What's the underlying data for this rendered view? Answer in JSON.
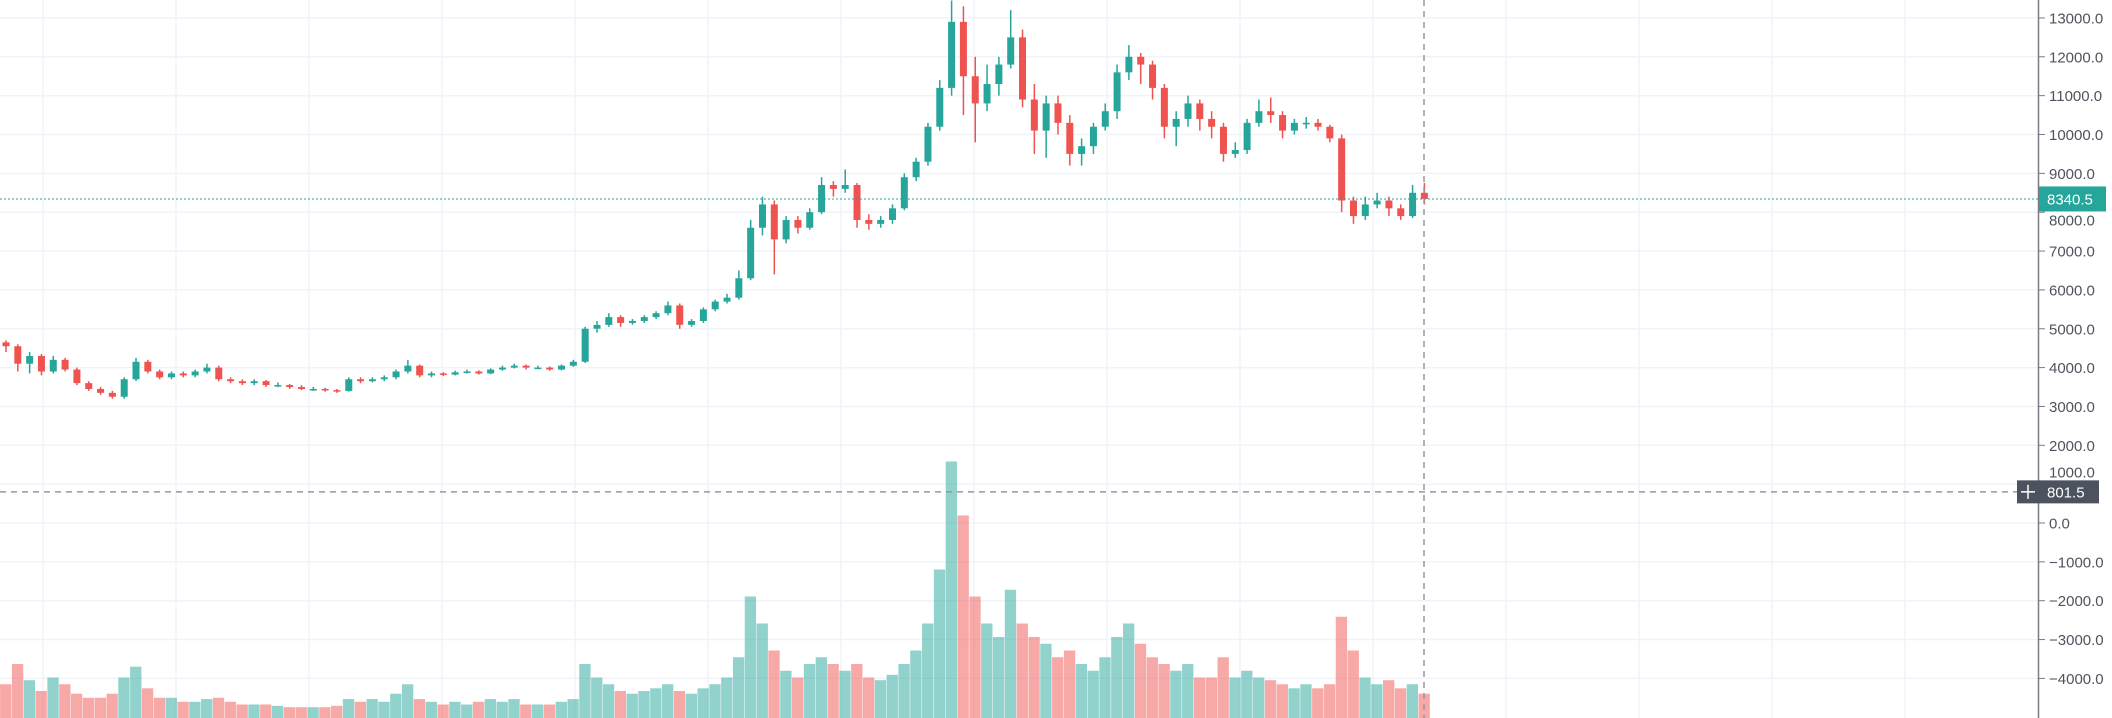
{
  "chart_data": {
    "type": "candlestick",
    "title": "",
    "xlabel": "",
    "ylabel": "",
    "ylim": [
      -5000,
      13500
    ],
    "y_ticks": [
      "13000.0",
      "12000.0",
      "11000.0",
      "10000.0",
      "9000.0",
      "8000.0",
      "7000.0",
      "6000.0",
      "5000.0",
      "4000.0",
      "3000.0",
      "2000.0",
      "1000.0",
      "0.0",
      "−1000.0",
      "−2000.0",
      "−3000.0",
      "−4000.0"
    ],
    "grid": true,
    "colors": {
      "up": "#26a69a",
      "down": "#ef5350",
      "grid": "#f0f3fa",
      "crosshair": "#9598a1",
      "crosshair_label_bg": "#4c525e",
      "last_price_bg": "#26a69a"
    },
    "last_price": {
      "value": 8340.5,
      "label": "8340.5"
    },
    "crosshair": {
      "price": 801.5,
      "label": "801.5",
      "icon": "plus-icon"
    },
    "candles_ohlc": [
      [
        4650,
        4700,
        4400,
        4550
      ],
      [
        4550,
        4600,
        3900,
        4100
      ],
      [
        4100,
        4400,
        3850,
        4300
      ],
      [
        4300,
        4350,
        3800,
        3900
      ],
      [
        3900,
        4300,
        3850,
        4200
      ],
      [
        4200,
        4250,
        3900,
        3950
      ],
      [
        3950,
        4000,
        3550,
        3600
      ],
      [
        3600,
        3650,
        3400,
        3450
      ],
      [
        3450,
        3500,
        3300,
        3350
      ],
      [
        3350,
        3400,
        3200,
        3250
      ],
      [
        3250,
        3750,
        3200,
        3700
      ],
      [
        3700,
        4250,
        3650,
        4150
      ],
      [
        4150,
        4200,
        3850,
        3900
      ],
      [
        3900,
        3950,
        3700,
        3750
      ],
      [
        3750,
        3900,
        3700,
        3850
      ],
      [
        3850,
        3900,
        3750,
        3800
      ],
      [
        3800,
        3950,
        3750,
        3900
      ],
      [
        3900,
        4100,
        3850,
        4000
      ],
      [
        4000,
        4050,
        3650,
        3700
      ],
      [
        3700,
        3750,
        3600,
        3650
      ],
      [
        3650,
        3700,
        3550,
        3600
      ],
      [
        3600,
        3700,
        3550,
        3650
      ],
      [
        3650,
        3680,
        3500,
        3550
      ],
      [
        3550,
        3620,
        3500,
        3550
      ],
      [
        3550,
        3580,
        3450,
        3500
      ],
      [
        3500,
        3550,
        3420,
        3450
      ],
      [
        3450,
        3500,
        3400,
        3450
      ],
      [
        3450,
        3480,
        3380,
        3420
      ],
      [
        3420,
        3450,
        3350,
        3400
      ],
      [
        3400,
        3750,
        3380,
        3700
      ],
      [
        3700,
        3750,
        3600,
        3650
      ],
      [
        3650,
        3750,
        3620,
        3700
      ],
      [
        3700,
        3800,
        3650,
        3750
      ],
      [
        3750,
        3950,
        3700,
        3900
      ],
      [
        3900,
        4200,
        3850,
        4050
      ],
      [
        4050,
        4080,
        3750,
        3800
      ],
      [
        3800,
        3900,
        3750,
        3850
      ],
      [
        3850,
        3880,
        3780,
        3820
      ],
      [
        3820,
        3920,
        3800,
        3880
      ],
      [
        3880,
        3950,
        3850,
        3900
      ],
      [
        3900,
        3930,
        3820,
        3850
      ],
      [
        3850,
        3980,
        3830,
        3950
      ],
      [
        3950,
        4050,
        3920,
        4000
      ],
      [
        4000,
        4100,
        3980,
        4050
      ],
      [
        4050,
        4080,
        3950,
        4000
      ],
      [
        4000,
        4050,
        3960,
        4000
      ],
      [
        4000,
        4030,
        3920,
        3950
      ],
      [
        3950,
        4080,
        3930,
        4050
      ],
      [
        4050,
        4200,
        4020,
        4150
      ],
      [
        4150,
        5050,
        4120,
        5000
      ],
      [
        5000,
        5200,
        4900,
        5100
      ],
      [
        5100,
        5400,
        5050,
        5300
      ],
      [
        5300,
        5350,
        5050,
        5150
      ],
      [
        5150,
        5250,
        5100,
        5200
      ],
      [
        5200,
        5350,
        5150,
        5300
      ],
      [
        5300,
        5450,
        5250,
        5400
      ],
      [
        5400,
        5700,
        5350,
        5600
      ],
      [
        5600,
        5650,
        5000,
        5100
      ],
      [
        5100,
        5250,
        5050,
        5200
      ],
      [
        5200,
        5550,
        5150,
        5500
      ],
      [
        5500,
        5750,
        5450,
        5700
      ],
      [
        5700,
        5900,
        5650,
        5800
      ],
      [
        5800,
        6500,
        5750,
        6300
      ],
      [
        6300,
        7800,
        6250,
        7600
      ],
      [
        7600,
        8400,
        7400,
        8200
      ],
      [
        8200,
        8300,
        6400,
        7300
      ],
      [
        7300,
        7900,
        7200,
        7800
      ],
      [
        7800,
        7900,
        7450,
        7600
      ],
      [
        7600,
        8100,
        7550,
        8000
      ],
      [
        8000,
        8900,
        7950,
        8700
      ],
      [
        8700,
        8800,
        8400,
        8600
      ],
      [
        8600,
        9100,
        8500,
        8700
      ],
      [
        8700,
        8750,
        7600,
        7800
      ],
      [
        7800,
        7950,
        7550,
        7700
      ],
      [
        7700,
        7900,
        7600,
        7800
      ],
      [
        7800,
        8200,
        7700,
        8100
      ],
      [
        8100,
        9000,
        8050,
        8900
      ],
      [
        8900,
        9400,
        8800,
        9300
      ],
      [
        9300,
        10300,
        9200,
        10200
      ],
      [
        10200,
        11400,
        10100,
        11200
      ],
      [
        11200,
        13450,
        11000,
        12900
      ],
      [
        12900,
        13300,
        10500,
        11500
      ],
      [
        11500,
        12000,
        9800,
        10800
      ],
      [
        10800,
        11800,
        10600,
        11300
      ],
      [
        11300,
        12000,
        11000,
        11800
      ],
      [
        11800,
        13200,
        11700,
        12500
      ],
      [
        12500,
        12700,
        10700,
        10900
      ],
      [
        10900,
        11300,
        9500,
        10100
      ],
      [
        10100,
        11000,
        9400,
        10800
      ],
      [
        10800,
        11000,
        10000,
        10300
      ],
      [
        10300,
        10500,
        9200,
        9500
      ],
      [
        9500,
        9900,
        9200,
        9700
      ],
      [
        9700,
        10300,
        9500,
        10200
      ],
      [
        10200,
        10800,
        10100,
        10600
      ],
      [
        10600,
        11800,
        10400,
        11600
      ],
      [
        11600,
        12300,
        11400,
        12000
      ],
      [
        12000,
        12100,
        11300,
        11800
      ],
      [
        11800,
        11900,
        10900,
        11200
      ],
      [
        11200,
        11300,
        9900,
        10200
      ],
      [
        10200,
        10600,
        9700,
        10400
      ],
      [
        10400,
        11000,
        10200,
        10800
      ],
      [
        10800,
        10900,
        10100,
        10400
      ],
      [
        10400,
        10600,
        9900,
        10200
      ],
      [
        10200,
        10300,
        9300,
        9500
      ],
      [
        9500,
        9800,
        9400,
        9600
      ],
      [
        9600,
        10400,
        9500,
        10300
      ],
      [
        10300,
        10900,
        10200,
        10600
      ],
      [
        10600,
        10950,
        10300,
        10500
      ],
      [
        10500,
        10600,
        9900,
        10100
      ],
      [
        10100,
        10400,
        10000,
        10300
      ],
      [
        10300,
        10450,
        10150,
        10300
      ],
      [
        10300,
        10400,
        10100,
        10200
      ],
      [
        10200,
        10250,
        9800,
        9900
      ],
      [
        9900,
        10000,
        8000,
        8300
      ],
      [
        8300,
        8400,
        7700,
        7900
      ],
      [
        7900,
        8400,
        7800,
        8200
      ],
      [
        8200,
        8500,
        8100,
        8300
      ],
      [
        8300,
        8400,
        7900,
        8100
      ],
      [
        8100,
        8200,
        7800,
        7900
      ],
      [
        7900,
        8700,
        7850,
        8500
      ],
      [
        8500,
        8750,
        8200,
        8340.5
      ]
    ],
    "volume_relative": [
      25,
      40,
      28,
      20,
      30,
      25,
      18,
      15,
      15,
      18,
      30,
      38,
      22,
      15,
      15,
      12,
      12,
      14,
      15,
      12,
      10,
      10,
      10,
      9,
      8,
      8,
      8,
      8,
      9,
      14,
      12,
      14,
      12,
      18,
      25,
      14,
      12,
      10,
      12,
      10,
      12,
      14,
      12,
      14,
      10,
      10,
      10,
      12,
      14,
      40,
      30,
      25,
      20,
      18,
      20,
      22,
      25,
      20,
      18,
      22,
      25,
      30,
      45,
      90,
      70,
      50,
      35,
      30,
      40,
      45,
      40,
      35,
      40,
      30,
      28,
      32,
      40,
      50,
      70,
      110,
      190,
      150,
      90,
      70,
      60,
      95,
      70,
      60,
      55,
      45,
      50,
      40,
      35,
      45,
      60,
      70,
      55,
      45,
      40,
      35,
      40,
      30,
      30,
      45,
      30,
      35,
      30,
      28,
      25,
      22,
      25,
      22,
      25,
      75,
      50,
      30,
      25,
      28,
      22,
      25,
      18
    ]
  }
}
